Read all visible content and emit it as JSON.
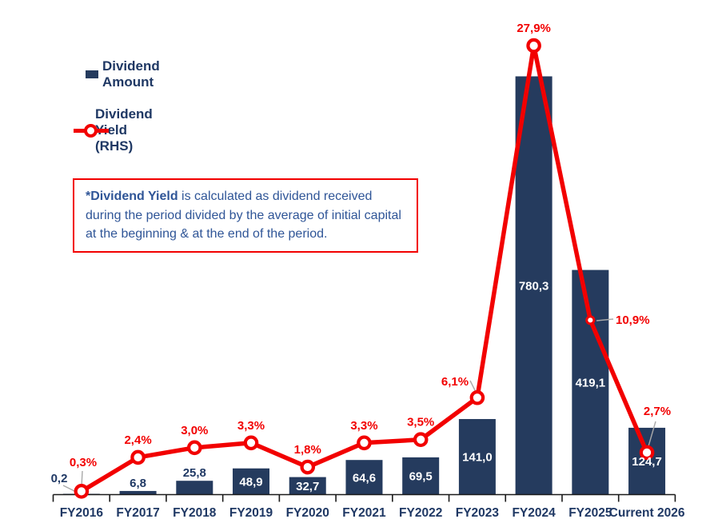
{
  "legend": {
    "amount_label": "Dividend Amount",
    "yield_label": "Dividend Yield (RHS)"
  },
  "note": {
    "bold": "*Dividend Yield",
    "rest": " is calculated as dividend received during the period divided by the average of initial capital at the beginning & at the end of the period."
  },
  "colors": {
    "bar": "#253B5E",
    "line": "#F20000",
    "text_navy": "#1F3864",
    "note_text": "#2F5597",
    "note_border": "#F20000",
    "leader": "#A9A9A9",
    "axis": "#1A1A1A",
    "inside_label": "#FFFFFF"
  },
  "chart_data": {
    "type": "bar",
    "subtype": "bar+line combo, dual axis",
    "title": "",
    "xlabel": "",
    "ylabel": "",
    "gridlines": false,
    "value_axes_hidden": true,
    "legend_position": "top-left",
    "categories": [
      "FY2016",
      "FY2017",
      "FY2018",
      "FY2019",
      "FY2020",
      "FY2021",
      "FY2022",
      "FY2023",
      "FY2024",
      "FY2025",
      "Current 2026"
    ],
    "series": [
      {
        "name": "Dividend Amount",
        "type": "bar",
        "axis": "left",
        "values": [
          0.2,
          6.8,
          25.8,
          48.9,
          32.7,
          64.6,
          69.5,
          141.0,
          780.3,
          419.1,
          124.7
        ],
        "labels": [
          "0,2",
          "6,8",
          "25,8",
          "48,9",
          "32,7",
          "64,6",
          "69,5",
          "141,0",
          "780,3",
          "419,1",
          "124,7"
        ]
      },
      {
        "name": "Dividend Yield (RHS)",
        "type": "line",
        "axis": "right",
        "unit": "%",
        "values": [
          0.3,
          2.4,
          3.0,
          3.3,
          1.8,
          3.3,
          3.5,
          6.1,
          27.9,
          10.9,
          2.7
        ],
        "labels": [
          "0,3%",
          "2,4%",
          "3,0%",
          "3,3%",
          "1,8%",
          "3,3%",
          "3,5%",
          "6,1%",
          "27,9%",
          "10,9%",
          "2,7%"
        ]
      }
    ]
  }
}
